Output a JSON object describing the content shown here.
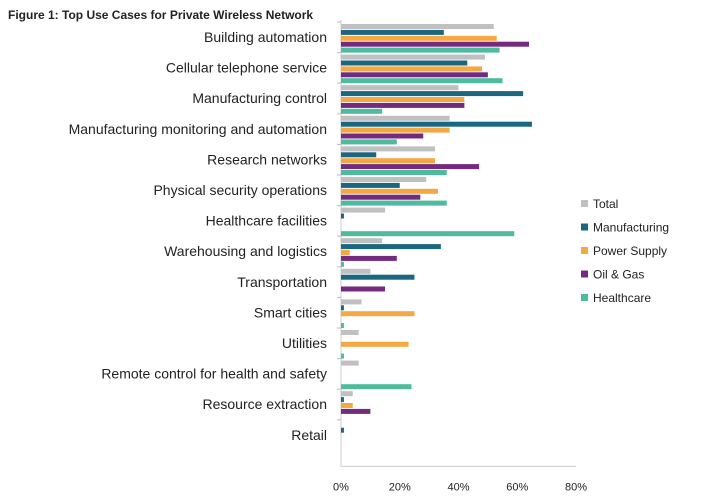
{
  "chart_data": {
    "type": "bar",
    "orientation": "horizontal",
    "title": "Figure 1: Top Use Cases for Private Wireless Network",
    "xlabel": "",
    "ylabel": "",
    "xlim": [
      0,
      80
    ],
    "xticks": [
      "0%",
      "20%",
      "40%",
      "60%",
      "80%"
    ],
    "legend_position": "right",
    "categories": [
      "Building automation",
      "Cellular telephone service",
      "Manufacturing control",
      "Manufacturing monitoring and automation",
      "Research networks",
      "Physical security operations",
      "Healthcare facilities",
      "Warehousing and logistics",
      "Transportation",
      "Smart cities",
      "Utilities",
      "Remote control for health and safety",
      "Resource extraction",
      "Retail"
    ],
    "series": [
      {
        "name": "Total",
        "color": "#c0c0c0",
        "values": [
          52,
          49,
          40,
          37,
          32,
          29,
          15,
          14,
          10,
          7,
          6,
          6,
          4,
          0
        ]
      },
      {
        "name": "Manufacturing",
        "color": "#1b6680",
        "values": [
          35,
          43,
          62,
          65,
          12,
          20,
          1,
          34,
          25,
          1,
          0,
          0,
          1,
          1
        ]
      },
      {
        "name": "Power Supply",
        "color": "#f5a742",
        "values": [
          53,
          48,
          42,
          37,
          32,
          33,
          0,
          3,
          0,
          25,
          23,
          0,
          4,
          0
        ]
      },
      {
        "name": "Oil & Gas",
        "color": "#742a7f",
        "values": [
          64,
          50,
          42,
          28,
          47,
          27,
          0,
          19,
          15,
          0,
          0,
          0,
          10,
          0
        ]
      },
      {
        "name": "Healthcare",
        "color": "#4dbb9c",
        "values": [
          54,
          55,
          14,
          19,
          36,
          36,
          59,
          1,
          0,
          1,
          1,
          24,
          0,
          0
        ]
      }
    ]
  }
}
